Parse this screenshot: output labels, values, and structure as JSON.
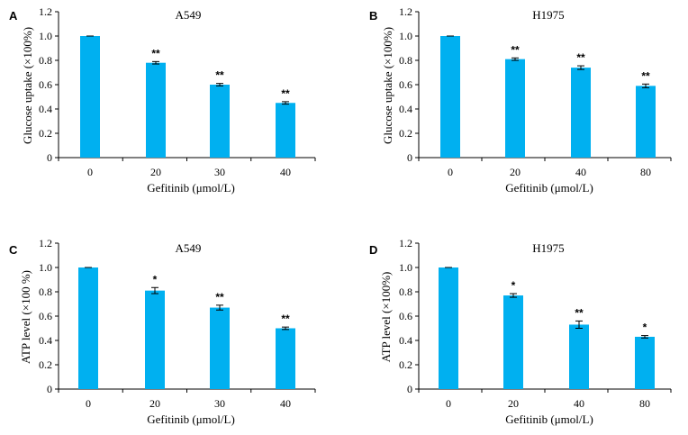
{
  "chart_data": [
    {
      "type": "bar",
      "panel_label": "A",
      "title": "A549",
      "xlabel": "Gefitinib (μmol/L)",
      "ylabel": "Glucose uptake (×100%)",
      "categories": [
        "0",
        "20",
        "30",
        "40"
      ],
      "values": [
        1.0,
        0.78,
        0.6,
        0.45
      ],
      "errors": [
        0.0,
        0.01,
        0.01,
        0.01
      ],
      "significance": [
        "",
        "**",
        "**",
        "**"
      ],
      "ylim": [
        0,
        1.2
      ],
      "yticks": [
        "0",
        "0.2",
        "0.4",
        "0.6",
        "0.8",
        "1.0",
        "1.2"
      ],
      "grid": false,
      "bar_color": "#00b0f0"
    },
    {
      "type": "bar",
      "panel_label": "B",
      "title": "H1975",
      "xlabel": "Gefitinib (μmol/L)",
      "ylabel": "Glucose uptake (×100%)",
      "categories": [
        "0",
        "20",
        "40",
        "80"
      ],
      "values": [
        1.0,
        0.81,
        0.74,
        0.59
      ],
      "errors": [
        0.0,
        0.01,
        0.015,
        0.015
      ],
      "significance": [
        "",
        "**",
        "**",
        "**"
      ],
      "ylim": [
        0,
        1.2
      ],
      "yticks": [
        "0",
        "0.2",
        "0.4",
        "0.6",
        "0.8",
        "1.0",
        "1.2"
      ],
      "grid": false,
      "bar_color": "#00b0f0"
    },
    {
      "type": "bar",
      "panel_label": "C",
      "title": "A549",
      "xlabel": "Gefitinib (μmol/L)",
      "ylabel": "ATP level (×100 %)",
      "categories": [
        "0",
        "20",
        "30",
        "40"
      ],
      "values": [
        1.0,
        0.81,
        0.67,
        0.5
      ],
      "errors": [
        0.0,
        0.025,
        0.02,
        0.01
      ],
      "significance": [
        "",
        "*",
        "**",
        "**"
      ],
      "ylim": [
        0,
        1.2
      ],
      "yticks": [
        "0",
        "0.2",
        "0.4",
        "0.6",
        "0.8",
        "1.0",
        "1.2"
      ],
      "grid": false,
      "bar_color": "#00b0f0"
    },
    {
      "type": "bar",
      "panel_label": "D",
      "title": "H1975",
      "xlabel": "Gefitinib (μmol/L)",
      "ylabel": "ATP level (×100%)",
      "categories": [
        "0",
        "20",
        "40",
        "80"
      ],
      "values": [
        1.0,
        0.77,
        0.53,
        0.43
      ],
      "errors": [
        0.0,
        0.015,
        0.03,
        0.01
      ],
      "significance": [
        "",
        "*",
        "**",
        "*"
      ],
      "ylim": [
        0,
        1.2
      ],
      "yticks": [
        "0",
        "0.2",
        "0.4",
        "0.6",
        "0.8",
        "1.0",
        "1.2"
      ],
      "grid": false,
      "bar_color": "#00b0f0"
    }
  ]
}
